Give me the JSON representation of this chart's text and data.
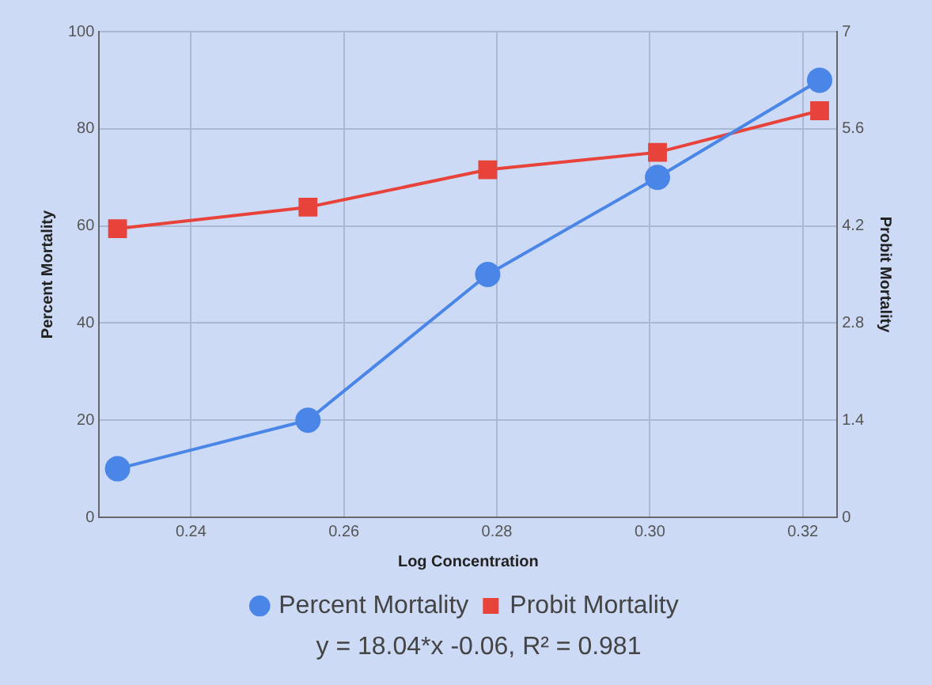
{
  "chart_data": {
    "type": "line",
    "xlabel": "Log Concentration",
    "ylabel": "Percent Mortality",
    "y2label": "Probit Mortality",
    "x": [
      0.2304,
      0.2553,
      0.2788,
      0.301,
      0.3222
    ],
    "series": [
      {
        "name": "Percent Mortality",
        "color": "#4a86e8",
        "marker": "circle",
        "values": [
          10,
          20,
          50,
          70,
          90
        ]
      },
      {
        "name": "Probit Mortality",
        "color": "#e8433b",
        "marker": "square",
        "axis": "y2",
        "values": [
          4.16,
          4.47,
          5.01,
          5.26,
          5.86
        ]
      }
    ],
    "xlim": [
      0.228,
      0.3245
    ],
    "xticks": [
      0.24,
      0.26,
      0.28,
      {
        "value": 0.3,
        "label": "0.30"
      },
      0.32
    ],
    "ylim": [
      0,
      100
    ],
    "yticks": [
      0,
      20,
      40,
      60,
      80,
      100
    ],
    "y2lim": [
      0,
      7
    ],
    "y2ticks": [
      0,
      1.4,
      2.8,
      4.2,
      5.6,
      7
    ],
    "grid": true,
    "legend": "bottom",
    "line_style": "solid",
    "annotations": [
      "y = 18.04*x -0.06, R² = 0.981"
    ]
  }
}
